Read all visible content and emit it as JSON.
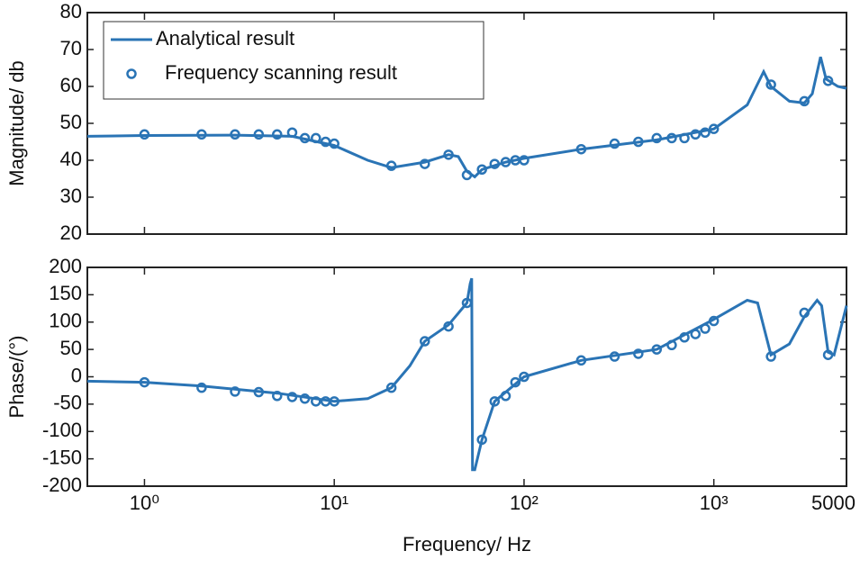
{
  "chart_data": [
    {
      "type": "line",
      "ylabel": "Magnitude/ db",
      "log_x": true,
      "legend": "upper left",
      "xlim": [
        0.5,
        5000
      ],
      "ylim": [
        20,
        80
      ],
      "yticks": [
        20,
        30,
        40,
        50,
        60,
        70,
        80
      ],
      "series": [
        {
          "name": "Analytical result",
          "color": "#2a74b5",
          "style": "line",
          "x": [
            0.5,
            1,
            3,
            6,
            10,
            15,
            20,
            30,
            40,
            45,
            50,
            55,
            60,
            80,
            100,
            200,
            500,
            1000,
            1500,
            1830,
            2000,
            2500,
            3000,
            3300,
            3650,
            3900,
            4500,
            5000
          ],
          "values": [
            46.5,
            46.7,
            46.8,
            46.5,
            44,
            40,
            38,
            39.5,
            41.5,
            41,
            37,
            35.5,
            37.5,
            39.5,
            40.5,
            43,
            45.5,
            48.5,
            55,
            64,
            60,
            56,
            55.5,
            58,
            68,
            62,
            60,
            59.5
          ]
        },
        {
          "name": "Frequency scanning result",
          "color": "#2a74b5",
          "style": "marker",
          "x": [
            1,
            2,
            3,
            4,
            5,
            6,
            7,
            8,
            9,
            10,
            20,
            30,
            40,
            50,
            60,
            70,
            80,
            90,
            100,
            200,
            300,
            400,
            500,
            600,
            700,
            800,
            900,
            1000,
            2000,
            3000,
            4000
          ],
          "values": [
            47,
            47,
            47,
            47,
            47,
            47.5,
            46,
            46,
            45,
            44.5,
            38.5,
            39,
            41.5,
            36,
            37.5,
            39,
            39.5,
            40,
            40,
            43,
            44.5,
            45,
            46,
            46,
            46,
            47,
            47.5,
            48.5,
            60.5,
            56,
            61.5
          ]
        }
      ]
    },
    {
      "type": "line",
      "ylabel": "Phase/(°)",
      "xlabel": "Frequency/ Hz",
      "log_x": true,
      "xlim": [
        0.5,
        5000
      ],
      "xticks": [
        {
          "value": 1,
          "label": "10⁰"
        },
        {
          "value": 10,
          "label": "10¹"
        },
        {
          "value": 100,
          "label": "10²"
        },
        {
          "value": 1000,
          "label": "10³"
        },
        5000
      ],
      "ylim": [
        -200,
        200
      ],
      "yticks": [
        -200,
        -150,
        -100,
        -50,
        0,
        50,
        100,
        150,
        200
      ],
      "series": [
        {
          "color": "#2a74b5",
          "style": "line",
          "x": [
            0.5,
            1,
            2,
            5,
            10,
            15,
            20,
            25,
            30,
            40,
            50,
            52,
            53,
            53.5,
            55,
            60,
            70,
            100,
            200,
            500,
            1000,
            1500,
            1700,
            2000,
            2500,
            3000,
            3500,
            3700,
            4000,
            4300,
            5000
          ],
          "values": [
            -8,
            -10,
            -17,
            -30,
            -45,
            -40,
            -20,
            20,
            65,
            95,
            135,
            170,
            180,
            -170,
            -170,
            -115,
            -45,
            0,
            30,
            50,
            105,
            140,
            135,
            40,
            60,
            110,
            140,
            130,
            45,
            40,
            130
          ]
        },
        {
          "color": "#2a74b5",
          "style": "marker",
          "x": [
            1,
            2,
            3,
            4,
            5,
            6,
            7,
            8,
            9,
            10,
            20,
            30,
            40,
            50,
            60,
            70,
            80,
            90,
            100,
            200,
            300,
            400,
            500,
            600,
            700,
            800,
            900,
            1000,
            2000,
            3000,
            4000
          ],
          "values": [
            -10,
            -20,
            -27,
            -28,
            -35,
            -37,
            -40,
            -45,
            -45,
            -45,
            -20,
            65,
            92,
            135,
            -115,
            -45,
            -35,
            -10,
            0,
            30,
            37,
            42,
            50,
            58,
            72,
            78,
            88,
            102,
            37,
            117,
            40
          ]
        }
      ]
    }
  ]
}
